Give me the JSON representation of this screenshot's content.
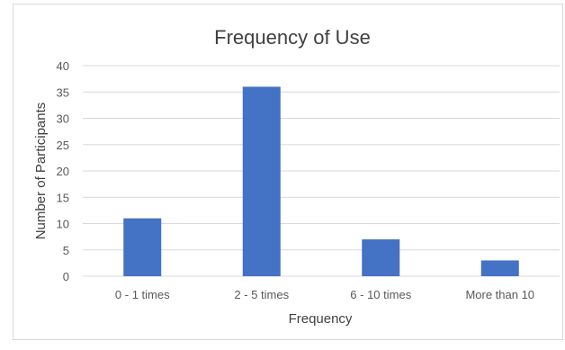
{
  "chart_data": {
    "type": "bar",
    "title": "Frequency of Use",
    "xlabel": "Frequency",
    "ylabel": "Number of Participants",
    "categories": [
      "0 - 1 times",
      "2 - 5  times",
      "6 - 10 times",
      "More than 10"
    ],
    "values": [
      11,
      36,
      7,
      3
    ],
    "ylim": [
      0,
      40
    ],
    "yticks": [
      "0",
      "5",
      "10",
      "15",
      "20",
      "25",
      "30",
      "35",
      "40"
    ],
    "grid": true,
    "legend": "none",
    "bar_color": "#4472c4",
    "grid_color": "#d9d9d9",
    "text_color": "#595959",
    "axis_title_color": "#404040"
  }
}
